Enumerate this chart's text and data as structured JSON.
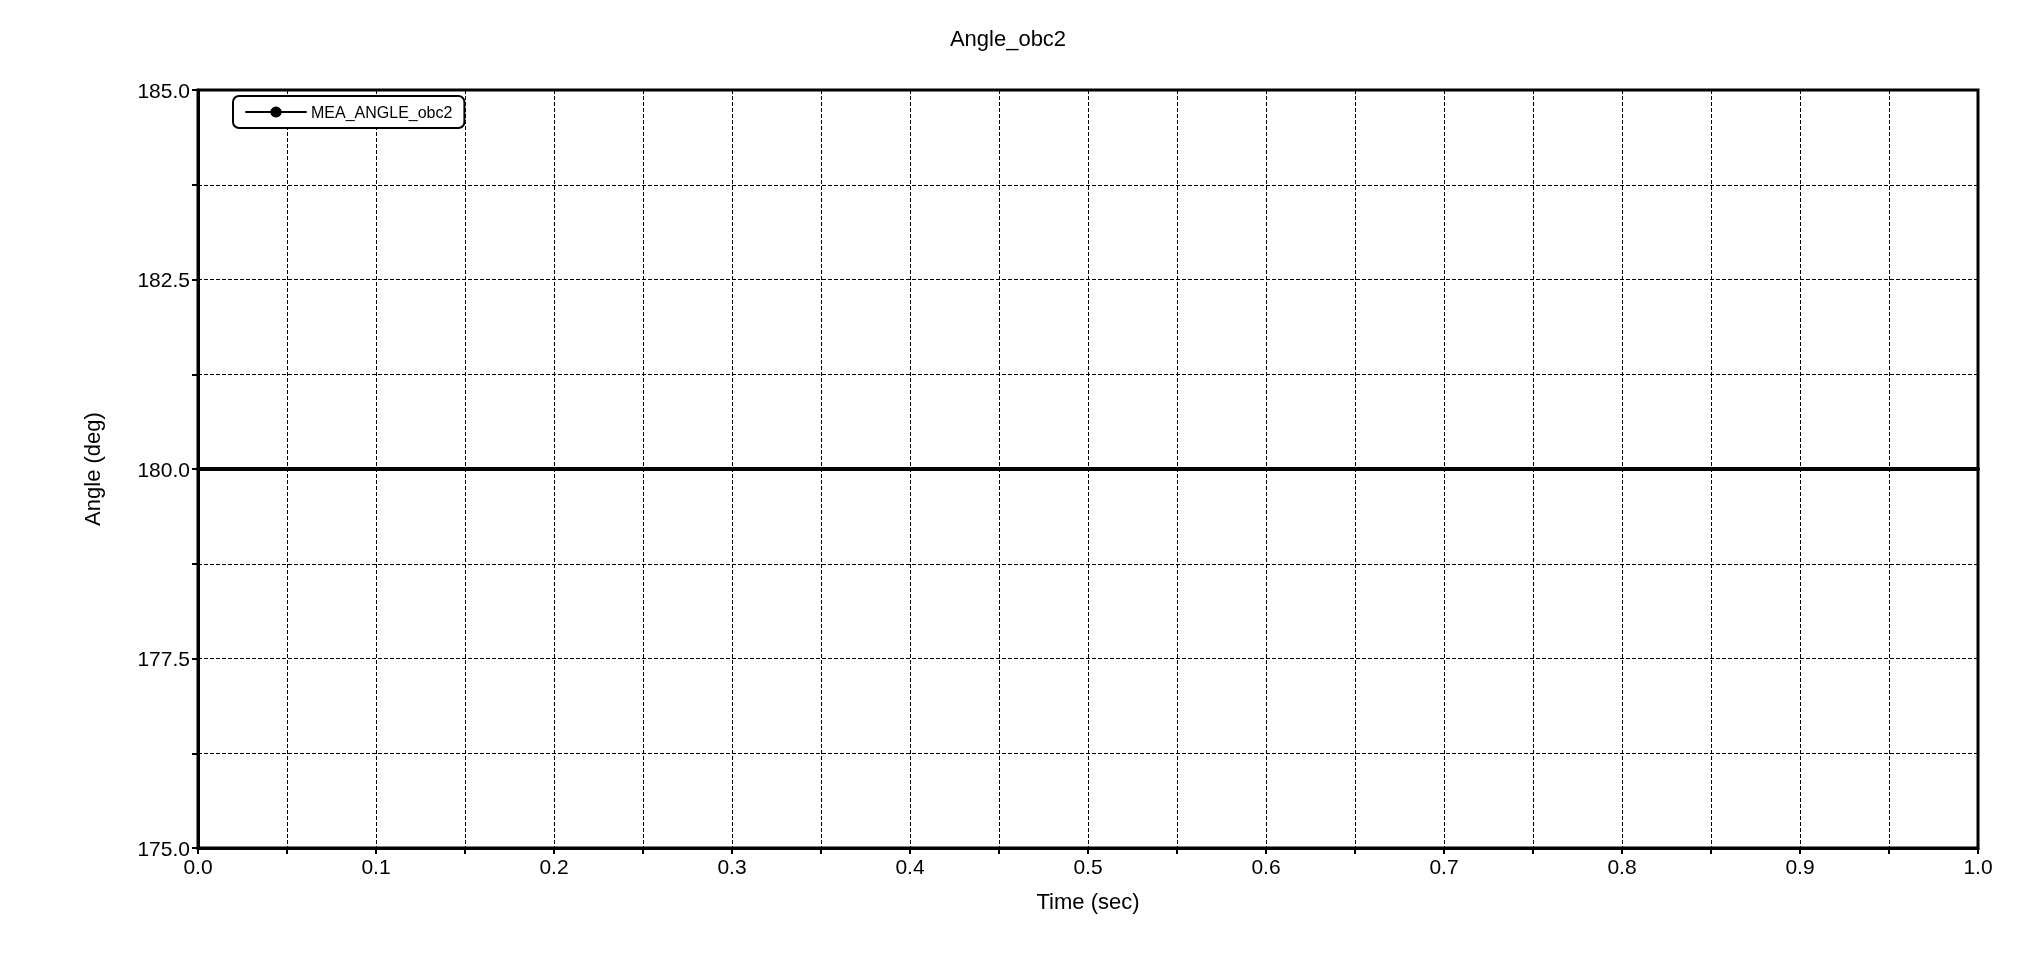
{
  "chart_data": {
    "type": "line",
    "title": "Angle_obc2",
    "xlabel": "Time (sec)",
    "ylabel": "Angle (deg)",
    "x": [
      0,
      1
    ],
    "series": [
      {
        "name": "MEA_ANGLE_obc2",
        "color": "#000000",
        "values": [
          180,
          180
        ]
      }
    ],
    "xlim": [
      0,
      1
    ],
    "xticks": [
      {
        "value": 0,
        "label": "0.0"
      },
      {
        "value": 0.05,
        "label": null
      },
      {
        "value": 0.1,
        "label": "0.1"
      },
      {
        "value": 0.15,
        "label": null
      },
      {
        "value": 0.2,
        "label": "0.2"
      },
      {
        "value": 0.25,
        "label": null
      },
      {
        "value": 0.3,
        "label": "0.3"
      },
      {
        "value": 0.35,
        "label": null
      },
      {
        "value": 0.4,
        "label": "0.4"
      },
      {
        "value": 0.45,
        "label": null
      },
      {
        "value": 0.5,
        "label": "0.5"
      },
      {
        "value": 0.55,
        "label": null
      },
      {
        "value": 0.6,
        "label": "0.6"
      },
      {
        "value": 0.65,
        "label": null
      },
      {
        "value": 0.7,
        "label": "0.7"
      },
      {
        "value": 0.75,
        "label": null
      },
      {
        "value": 0.8,
        "label": "0.8"
      },
      {
        "value": 0.85,
        "label": null
      },
      {
        "value": 0.9,
        "label": "0.9"
      },
      {
        "value": 0.95,
        "label": null
      },
      {
        "value": 1,
        "label": "1.0"
      }
    ],
    "ylim": [
      175,
      185
    ],
    "yticks": [
      {
        "value": 175,
        "label": "175.0"
      },
      {
        "value": 176.25,
        "label": null
      },
      {
        "value": 177.5,
        "label": "177.5"
      },
      {
        "value": 178.75,
        "label": null
      },
      {
        "value": 180,
        "label": "180.0"
      },
      {
        "value": 181.25,
        "label": null
      },
      {
        "value": 182.5,
        "label": "182.5"
      },
      {
        "value": 183.75,
        "label": null
      },
      {
        "value": 185,
        "label": "185.0"
      }
    ],
    "grid": true,
    "legend": "top left",
    "marker": "none",
    "line_style": "solid"
  }
}
